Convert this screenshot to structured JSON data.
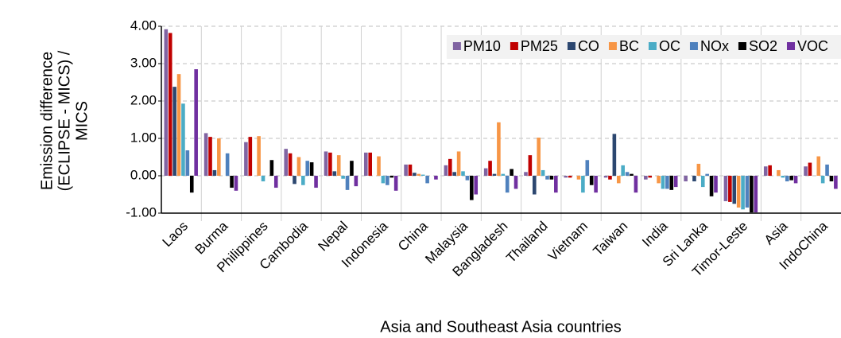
{
  "chart_data": {
    "type": "bar",
    "xlabel": "Asia and Southeast Asia countries",
    "ylabel": [
      "Emission difference",
      "(ECLIPSE - MICS) /",
      "MICS"
    ],
    "categories": [
      "Laos",
      "Burma",
      "Philippines",
      "Cambodia",
      "Nepal",
      "Indonesia",
      "China",
      "Malaysia",
      "Bangladesh",
      "Thailand",
      "Vietnam",
      "Taiwan",
      "India",
      "Sri Lanka",
      "Timor-Leste",
      "Asia",
      "IndoChina"
    ],
    "series": [
      {
        "name": "PM10",
        "color": "#8064a2",
        "values": [
          3.92,
          1.14,
          0.9,
          0.72,
          0.65,
          0.62,
          0.3,
          0.28,
          0.2,
          0.1,
          -0.05,
          -0.05,
          -0.1,
          -0.15,
          -0.68,
          0.25,
          0.25
        ]
      },
      {
        "name": "PM25",
        "color": "#c00000",
        "values": [
          3.82,
          1.04,
          1.04,
          0.6,
          0.62,
          0.62,
          0.3,
          0.45,
          0.4,
          0.55,
          -0.05,
          -0.1,
          -0.05,
          0.0,
          -0.7,
          0.28,
          0.35
        ]
      },
      {
        "name": "CO",
        "color": "#2c4770",
        "values": [
          2.38,
          0.15,
          0.0,
          -0.22,
          0.12,
          0.0,
          0.08,
          0.1,
          0.05,
          -0.5,
          0.0,
          1.12,
          0.0,
          -0.15,
          -0.75,
          0.0,
          0.0
        ]
      },
      {
        "name": "BC",
        "color": "#f79646",
        "values": [
          2.72,
          1.0,
          1.06,
          0.5,
          0.55,
          0.52,
          0.05,
          0.65,
          1.43,
          1.02,
          -0.1,
          -0.2,
          -0.2,
          0.32,
          -0.85,
          0.15,
          0.52
        ]
      },
      {
        "name": "OC",
        "color": "#4bacc6",
        "values": [
          1.93,
          0.0,
          -0.15,
          -0.25,
          -0.08,
          -0.2,
          0.03,
          0.12,
          0.05,
          0.15,
          -0.45,
          0.28,
          -0.35,
          -0.3,
          -0.9,
          -0.05,
          -0.2
        ]
      },
      {
        "name": "NOx",
        "color": "#4f81bd",
        "values": [
          0.68,
          0.6,
          0.0,
          0.4,
          -0.38,
          -0.25,
          -0.2,
          -0.12,
          -0.45,
          -0.1,
          0.42,
          0.1,
          -0.35,
          0.05,
          -0.85,
          -0.15,
          0.3
        ]
      },
      {
        "name": "SO2",
        "color": "#000000",
        "values": [
          -0.45,
          -0.32,
          0.42,
          0.36,
          0.4,
          -0.05,
          0.0,
          -0.65,
          0.18,
          -0.1,
          -0.25,
          0.05,
          -0.38,
          -0.55,
          -0.98,
          -0.12,
          -0.15
        ]
      },
      {
        "name": "VOC",
        "color": "#7030a0",
        "values": [
          2.85,
          -0.4,
          -0.32,
          -0.32,
          -0.28,
          -0.4,
          -0.1,
          -0.5,
          -0.35,
          -0.45,
          -0.45,
          -0.45,
          -0.3,
          -0.45,
          -0.98,
          -0.2,
          -0.35
        ]
      }
    ],
    "ylim": [
      -1,
      4
    ],
    "yticks": [
      {
        "value": -1,
        "label": "-1.00"
      },
      {
        "value": 0,
        "label": "0.00"
      },
      {
        "value": 1,
        "label": "1.00"
      },
      {
        "value": 2,
        "label": "2.00"
      },
      {
        "value": 3,
        "label": "3.00"
      },
      {
        "value": 4,
        "label": "4.00"
      }
    ],
    "grid": true,
    "legend": "upper right"
  }
}
